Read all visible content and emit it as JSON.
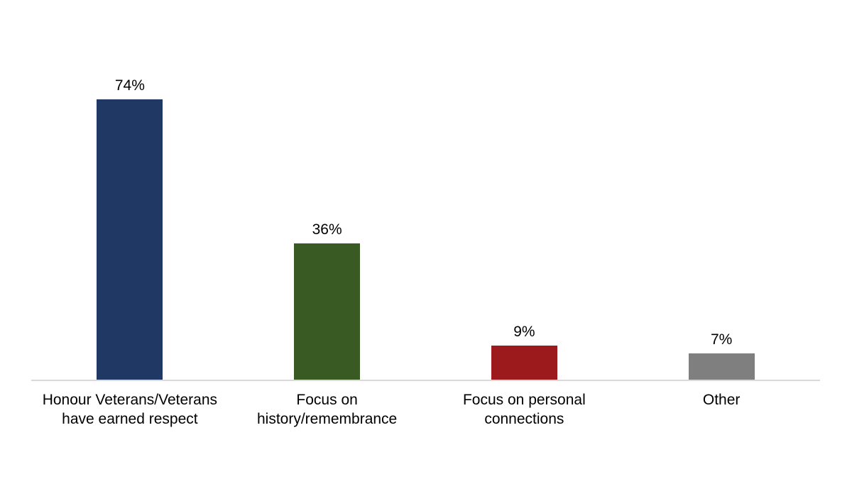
{
  "chart_data": {
    "type": "bar",
    "title": "",
    "xlabel": "",
    "ylabel": "",
    "categories": [
      "Honour Veterans/Veterans have earned respect",
      "Focus on history/remembrance",
      "Focus on personal connections",
      "Other"
    ],
    "category_labels_wrapped": [
      "Honour Veterans/Veterans\nhave earned respect",
      "Focus on\nhistory/remembrance",
      "Focus on personal\nconnections",
      "Other"
    ],
    "values": [
      74,
      36,
      9,
      7
    ],
    "value_labels": [
      "74%",
      "36%",
      "9%",
      "7%"
    ],
    "bar_colors": [
      "#203864",
      "#3A5A23",
      "#9C191C",
      "#7F7F7F"
    ],
    "axis_color": "#D9D9D9",
    "text_color": "#000000",
    "ylim": [
      0,
      100
    ],
    "grid": false,
    "legend": false,
    "value_label_position": "above-bar",
    "y_axis_visible": false,
    "x_axis_visible": true
  }
}
